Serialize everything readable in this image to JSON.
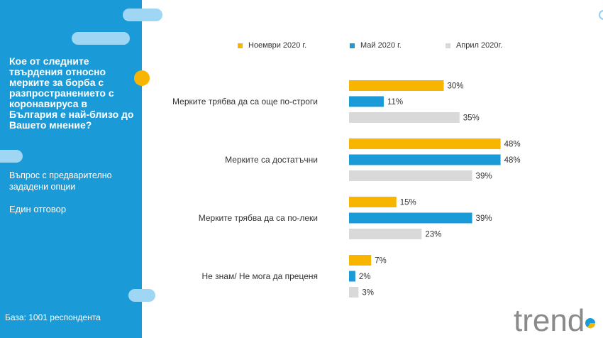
{
  "sidebar": {
    "question": "Кое от следните твърдения относно мерките за борба с разпространението с коронавируса в България е най-близо до Вашето мнение?",
    "subtitle": "Въпрос с предварително зададени опции",
    "answer_type": "Един отговор",
    "base": "База: 1001 респондента"
  },
  "logo": {
    "text": "trend"
  },
  "chart_data": {
    "type": "bar",
    "orientation": "horizontal",
    "categories": [
      "Мерките трябва да са още по-строги",
      "Мерките са достатъчни",
      "Мерките трябва да са по-леки",
      "Не знам/ Не мога да преценя"
    ],
    "series": [
      {
        "name": "Ноември 2020 г.",
        "color": "#f7b500",
        "values": [
          30,
          48,
          15,
          7
        ]
      },
      {
        "name": "Май 2020 г.",
        "color": "#1b9ad8",
        "values": [
          11,
          48,
          39,
          2
        ]
      },
      {
        "name": "Април 2020г.",
        "color": "#d9d9d9",
        "values": [
          35,
          39,
          23,
          3
        ]
      }
    ],
    "value_suffix": "%",
    "legend_position": "top",
    "grid": false
  }
}
